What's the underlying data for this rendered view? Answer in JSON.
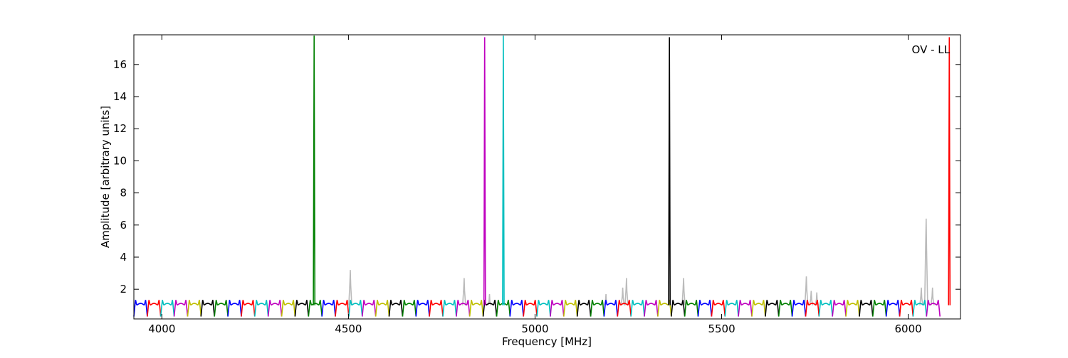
{
  "chart_data": {
    "type": "line",
    "title": "",
    "xlabel": "Frequency [MHz]",
    "ylabel": "Amplitude [arbitrary units]",
    "xlim": [
      3925,
      6140
    ],
    "ylim": [
      0.15,
      17.85
    ],
    "xticks": [
      "4000",
      "4500",
      "5000",
      "5500",
      "6000"
    ],
    "yticks": [
      "2",
      "4",
      "6",
      "8",
      "10",
      "12",
      "14",
      "16"
    ],
    "annotation": "OV - LL",
    "grid": false,
    "colors": {
      "palette": [
        "#0000ff",
        "#ff0000",
        "#00bfbf",
        "#bf00bf",
        "#bfbf00",
        "#000000",
        "#008000"
      ],
      "background_trace": "#bbbbbb"
    },
    "band_pattern": {
      "start_mhz": 3925,
      "end_mhz": 6085,
      "channel_width_mhz": 36,
      "baseline": 1.0,
      "peak": 1.35,
      "trough": 0.3
    },
    "spikes": [
      {
        "x": 4408,
        "y": 17.8,
        "color": "#008000"
      },
      {
        "x": 4865,
        "y": 17.7,
        "color": "#bf00bf"
      },
      {
        "x": 4915,
        "y": 17.8,
        "color": "#00bfbf"
      },
      {
        "x": 5360,
        "y": 17.7,
        "color": "#000000"
      },
      {
        "x": 6110,
        "y": 17.7,
        "color": "#ff0000"
      }
    ],
    "gray_bumps": [
      {
        "x": 4505,
        "y": 3.2
      },
      {
        "x": 4810,
        "y": 2.7
      },
      {
        "x": 4878,
        "y": 1.7
      },
      {
        "x": 5190,
        "y": 1.7
      },
      {
        "x": 5235,
        "y": 2.1
      },
      {
        "x": 5245,
        "y": 2.7
      },
      {
        "x": 5398,
        "y": 2.7
      },
      {
        "x": 5727,
        "y": 2.8
      },
      {
        "x": 5740,
        "y": 1.9
      },
      {
        "x": 5755,
        "y": 1.8
      },
      {
        "x": 6035,
        "y": 2.1
      },
      {
        "x": 6048,
        "y": 6.4
      },
      {
        "x": 6065,
        "y": 2.1
      }
    ]
  }
}
